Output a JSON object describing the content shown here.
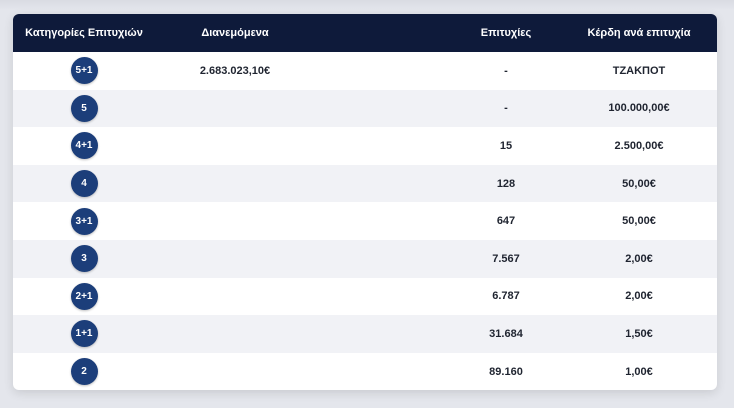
{
  "table": {
    "headers": {
      "category": "Κατηγορίες Επιτυχιών",
      "distributed": "Διανεμόμενα",
      "winners": "Επιτυχίες",
      "prize": "Κέρδη ανά επιτυχία"
    },
    "rows": [
      {
        "category": "5+1",
        "distributed": "2.683.023,10€",
        "winners": "-",
        "prize": "ΤΖΑΚΠΟΤ"
      },
      {
        "category": "5",
        "distributed": "",
        "winners": "-",
        "prize": "100.000,00€"
      },
      {
        "category": "4+1",
        "distributed": "",
        "winners": "15",
        "prize": "2.500,00€"
      },
      {
        "category": "4",
        "distributed": "",
        "winners": "128",
        "prize": "50,00€"
      },
      {
        "category": "3+1",
        "distributed": "",
        "winners": "647",
        "prize": "50,00€"
      },
      {
        "category": "3",
        "distributed": "",
        "winners": "7.567",
        "prize": "2,00€"
      },
      {
        "category": "2+1",
        "distributed": "",
        "winners": "6.787",
        "prize": "2,00€"
      },
      {
        "category": "1+1",
        "distributed": "",
        "winners": "31.684",
        "prize": "1,50€"
      },
      {
        "category": "2",
        "distributed": "",
        "winners": "89.160",
        "prize": "1,00€"
      }
    ]
  },
  "colors": {
    "header_bg": "#0e1a3a",
    "badge_bg": "#1c3e7a",
    "row_alt_bg": "#f1f2f6"
  }
}
